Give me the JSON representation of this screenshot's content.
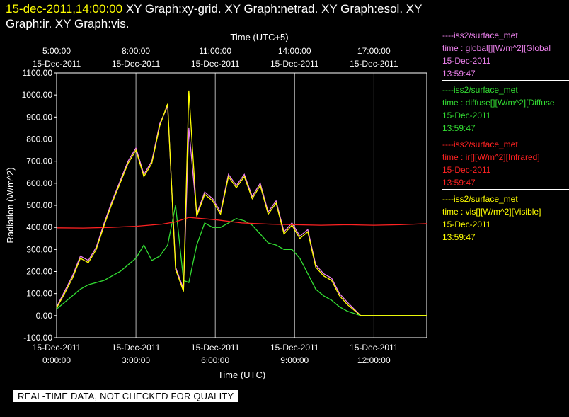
{
  "title": {
    "timestamp": "15-dec-2011,14:00:00",
    "rest": " XY Graph:xy-grid.  XY Graph:netrad.  XY Graph:esol.  XY Graph:ir.  XY Graph:vis."
  },
  "banner": "REAL-TIME DATA, NOT CHECKED FOR QUALITY",
  "legend": [
    {
      "line1": "----iss2/surface_met",
      "line2": "time : global[][W/m^2][Global",
      "line3": "15-Dec-2011",
      "line4": "13:59:47",
      "color": "#ee82ee"
    },
    {
      "line1": "----iss2/surface_met",
      "line2": "time : diffuse[][W/m^2][Diffuse",
      "line3": "15-Dec-2011",
      "line4": "13:59:47",
      "color": "#33dd33"
    },
    {
      "line1": "----iss2/surface_met",
      "line2": "time : ir[][W/m^2][Infrared]",
      "line3": "15-Dec-2011",
      "line4": "13:59:47",
      "color": "#ff2222"
    },
    {
      "line1": "----iss2/surface_met",
      "line2": "time : vis[][W/m^2][Visible]",
      "line3": "15-Dec-2011",
      "line4": "13:59:47",
      "color": "#ffff00"
    }
  ],
  "chart_data": {
    "type": "line",
    "xlabel": "Time (UTC)",
    "ylabel": "Radiation (W/m^2)",
    "top_xlabel": "Time (UTC+5)",
    "xlim": [
      0,
      14
    ],
    "ylim": [
      -100,
      1100
    ],
    "grid": "vertical",
    "legend_position": "right",
    "y_ticks": [
      "1100.00",
      "1000.00",
      "900.00",
      "800.00",
      "700.00",
      "600.00",
      "500.00",
      "400.00",
      "300.00",
      "200.00",
      "100.00",
      "0.00",
      "-100.00"
    ],
    "x_ticks_bottom": [
      {
        "x": 0,
        "date": "15-Dec-2011",
        "time": "0:00:00"
      },
      {
        "x": 3,
        "date": "15-Dec-2011",
        "time": "3:00:00"
      },
      {
        "x": 6,
        "date": "15-Dec-2011",
        "time": "6:00:00"
      },
      {
        "x": 9,
        "date": "15-Dec-2011",
        "time": "9:00:00"
      },
      {
        "x": 12,
        "date": "15-Dec-2011",
        "time": "12:00:00"
      }
    ],
    "x_ticks_top": [
      {
        "x": 0,
        "time": "5:00:00",
        "date": "15-Dec-2011"
      },
      {
        "x": 3,
        "time": "8:00:00",
        "date": "15-Dec-2011"
      },
      {
        "x": 6,
        "time": "11:00:00",
        "date": "15-Dec-2011"
      },
      {
        "x": 9,
        "time": "14:00:00",
        "date": "15-Dec-2011"
      },
      {
        "x": 12,
        "time": "17:00:00",
        "date": "15-Dec-2011"
      }
    ],
    "series": [
      {
        "name": "global",
        "color": "#ee82ee",
        "x": [
          0,
          0.3,
          0.6,
          0.9,
          1.2,
          1.5,
          1.8,
          2.1,
          2.4,
          2.7,
          3.0,
          3.3,
          3.6,
          3.9,
          4.2,
          4.5,
          4.8,
          5.0,
          5.3,
          5.6,
          5.9,
          6.2,
          6.5,
          6.8,
          7.1,
          7.4,
          7.7,
          8.0,
          8.3,
          8.6,
          8.9,
          9.2,
          9.5,
          9.8,
          10.1,
          10.4,
          10.7,
          11.0,
          11.5,
          12.0,
          13.0,
          14.0
        ],
        "values": [
          40,
          110,
          180,
          270,
          250,
          310,
          420,
          520,
          610,
          700,
          760,
          640,
          700,
          870,
          950,
          220,
          120,
          850,
          460,
          560,
          530,
          470,
          640,
          590,
          640,
          540,
          600,
          470,
          520,
          380,
          420,
          360,
          390,
          230,
          190,
          170,
          100,
          60,
          0,
          0,
          0,
          0
        ]
      },
      {
        "name": "diffuse",
        "color": "#33dd33",
        "x": [
          0,
          0.3,
          0.6,
          0.9,
          1.2,
          1.5,
          1.8,
          2.1,
          2.4,
          2.7,
          3.0,
          3.3,
          3.6,
          3.9,
          4.2,
          4.5,
          4.8,
          5.0,
          5.3,
          5.6,
          5.9,
          6.2,
          6.5,
          6.8,
          7.1,
          7.4,
          7.7,
          8.0,
          8.3,
          8.6,
          8.9,
          9.2,
          9.5,
          9.8,
          10.1,
          10.4,
          10.7,
          11.0,
          11.5,
          12.0,
          13.0,
          14.0
        ],
        "values": [
          30,
          60,
          90,
          120,
          140,
          150,
          160,
          180,
          200,
          230,
          260,
          320,
          250,
          270,
          320,
          500,
          160,
          150,
          320,
          420,
          400,
          400,
          420,
          440,
          430,
          410,
          370,
          330,
          320,
          300,
          300,
          260,
          190,
          120,
          90,
          70,
          40,
          20,
          0,
          0,
          0,
          0
        ]
      },
      {
        "name": "ir",
        "color": "#ff2222",
        "x": [
          0,
          1,
          2,
          3,
          4,
          4.5,
          5,
          6,
          7,
          8,
          9,
          10,
          11,
          12,
          13,
          14
        ],
        "values": [
          398,
          397,
          400,
          405,
          415,
          425,
          445,
          435,
          420,
          415,
          412,
          410,
          412,
          410,
          412,
          417
        ]
      },
      {
        "name": "vis",
        "color": "#ffff00",
        "x": [
          0,
          0.3,
          0.6,
          0.9,
          1.2,
          1.5,
          1.8,
          2.1,
          2.4,
          2.7,
          3.0,
          3.3,
          3.6,
          3.9,
          4.2,
          4.5,
          4.8,
          5.0,
          5.3,
          5.6,
          5.9,
          6.2,
          6.5,
          6.8,
          7.1,
          7.4,
          7.7,
          8.0,
          8.3,
          8.6,
          8.9,
          9.2,
          9.5,
          9.8,
          10.1,
          10.4,
          10.7,
          11.0,
          11.5,
          12.0,
          13.0,
          14.0
        ],
        "values": [
          35,
          100,
          170,
          260,
          240,
          300,
          410,
          510,
          600,
          690,
          750,
          630,
          690,
          860,
          960,
          210,
          110,
          1020,
          450,
          550,
          520,
          460,
          630,
          580,
          630,
          530,
          590,
          460,
          510,
          370,
          410,
          350,
          380,
          220,
          180,
          160,
          90,
          50,
          0,
          0,
          0,
          0
        ]
      }
    ]
  }
}
